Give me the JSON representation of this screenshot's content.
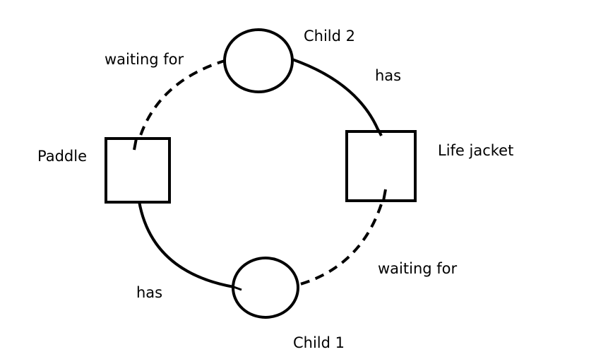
{
  "diagram": {
    "nodes": {
      "child2": {
        "label": "Child 2",
        "shape": "circle"
      },
      "child1": {
        "label": "Child 1",
        "shape": "circle"
      },
      "paddle": {
        "label": "Paddle",
        "shape": "square"
      },
      "life_jacket": {
        "label": "Life jacket",
        "shape": "square"
      }
    },
    "edges": {
      "child2_has_lifejacket": {
        "label": "has",
        "from": "Child 2",
        "to": "Life jacket",
        "style": "solid"
      },
      "lifejacket_waiting_child1": {
        "label": "waiting for",
        "from": "Child 1",
        "to": "Life jacket",
        "style": "dashed"
      },
      "child1_has_paddle": {
        "label": "has",
        "from": "Child 1",
        "to": "Paddle",
        "style": "solid"
      },
      "paddle_waiting_child2": {
        "label": "waiting for",
        "from": "Child 2",
        "to": "Paddle",
        "style": "dashed"
      }
    }
  }
}
